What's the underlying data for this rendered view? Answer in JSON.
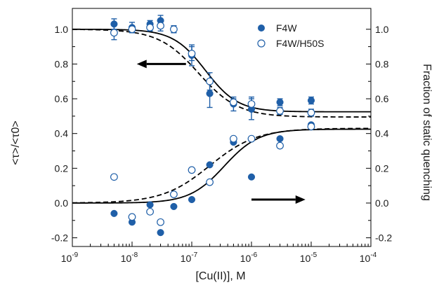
{
  "chart_data": {
    "type": "scatter",
    "xlabel": "[Cu(II)], M",
    "ylabel_left": "<τ>/<τ0>",
    "ylabel_right": "Fraction of static quenching",
    "xscale": "log",
    "xlim": [
      1e-09,
      0.0001
    ],
    "ylim": [
      -0.25,
      1.12
    ],
    "x_ticks": [
      {
        "value": 1e-09,
        "base": "10",
        "exp": "-9"
      },
      {
        "value": 1e-08,
        "base": "10",
        "exp": "-8"
      },
      {
        "value": 1e-07,
        "base": "10",
        "exp": "-7"
      },
      {
        "value": 1e-06,
        "base": "10",
        "exp": "-6"
      },
      {
        "value": 1e-05,
        "base": "10",
        "exp": "-5"
      },
      {
        "value": 0.0001,
        "base": "10",
        "exp": "-4"
      }
    ],
    "y_ticks": [
      {
        "value": -0.2,
        "label": "-0.2"
      },
      {
        "value": 0.0,
        "label": "0.0"
      },
      {
        "value": 0.2,
        "label": "0.2"
      },
      {
        "value": 0.4,
        "label": "0.4"
      },
      {
        "value": 0.6,
        "label": "0.6"
      },
      {
        "value": 0.8,
        "label": "0.8"
      },
      {
        "value": 1.0,
        "label": "1.0"
      }
    ],
    "legend": {
      "placement": "top-right",
      "entries": [
        "F4W",
        "F4W/H50S"
      ]
    },
    "colors": {
      "data": "#1f5fa8",
      "line": "#000000"
    },
    "series": [
      {
        "name": "F4W",
        "marker": "filled-circle",
        "axis": "left",
        "x": [
          5e-09,
          1e-08,
          2e-08,
          3e-08,
          5e-08,
          1e-07,
          2e-07,
          5e-07,
          1e-06,
          3e-06,
          1e-05
        ],
        "y": [
          1.03,
          1.01,
          1.03,
          1.05,
          1.0,
          0.85,
          0.63,
          0.57,
          0.54,
          0.58,
          0.59
        ],
        "err": [
          0.03,
          0.03,
          0.02,
          0.03,
          0.02,
          0.06,
          0.08,
          0.04,
          0.06,
          0.02,
          0.02
        ]
      },
      {
        "name": "F4W/H50S",
        "marker": "open-circle",
        "axis": "left",
        "x": [
          5e-09,
          1e-08,
          2e-08,
          3e-08,
          5e-08,
          1e-07,
          2e-07,
          5e-07,
          1e-06,
          3e-06,
          1e-05
        ],
        "y": [
          0.98,
          1.0,
          1.01,
          1.02,
          1.0,
          0.86,
          0.7,
          0.58,
          0.57,
          0.53,
          0.52
        ],
        "err": [
          0.04,
          0.02,
          0.02,
          0.03,
          0.02,
          0.04,
          0.05,
          0.02,
          0.04,
          0.02,
          0.02
        ]
      },
      {
        "name": "F4W",
        "marker": "filled-circle",
        "axis": "right",
        "x": [
          5e-09,
          1e-08,
          2e-08,
          3e-08,
          5e-08,
          1e-07,
          2e-07,
          5e-07,
          1e-06,
          3e-06,
          1e-05
        ],
        "y": [
          -0.06,
          -0.11,
          -0.01,
          -0.17,
          -0.02,
          0.02,
          0.22,
          0.35,
          0.15,
          0.37,
          0.45
        ]
      },
      {
        "name": "F4W/H50S",
        "marker": "open-circle",
        "axis": "right",
        "x": [
          5e-09,
          1e-08,
          2e-08,
          3e-08,
          5e-08,
          1e-07,
          2e-07,
          5e-07,
          1e-06,
          3e-06,
          1e-05
        ],
        "y": [
          0.15,
          -0.08,
          -0.05,
          -0.11,
          0.05,
          0.19,
          0.12,
          0.37,
          0.37,
          0.33,
          0.44
        ]
      }
    ],
    "fit_curves": [
      {
        "style": "solid",
        "axis": "left",
        "top": 1.0,
        "bottom": 0.525,
        "ec50": 1.7e-07,
        "hill": 1.6
      },
      {
        "style": "dashed",
        "axis": "left",
        "top": 1.0,
        "bottom": 0.495,
        "ec50": 1.3e-07,
        "hill": 1.3
      },
      {
        "style": "solid",
        "axis": "right",
        "top": 0.0,
        "bottom": 0.425,
        "ec50": 3.5e-07,
        "hill": 1.5
      },
      {
        "style": "dashed",
        "axis": "right",
        "top": 0.0,
        "bottom": 0.43,
        "ec50": 2e-07,
        "hill": 1.1
      }
    ],
    "arrows": [
      {
        "direction": "left",
        "axis": "left",
        "x_from": 8e-08,
        "x_to": 1.2e-08,
        "y": 0.8
      },
      {
        "direction": "right",
        "axis": "right",
        "x_from": 1e-06,
        "x_to": 8e-06,
        "y": 0.02
      }
    ]
  }
}
